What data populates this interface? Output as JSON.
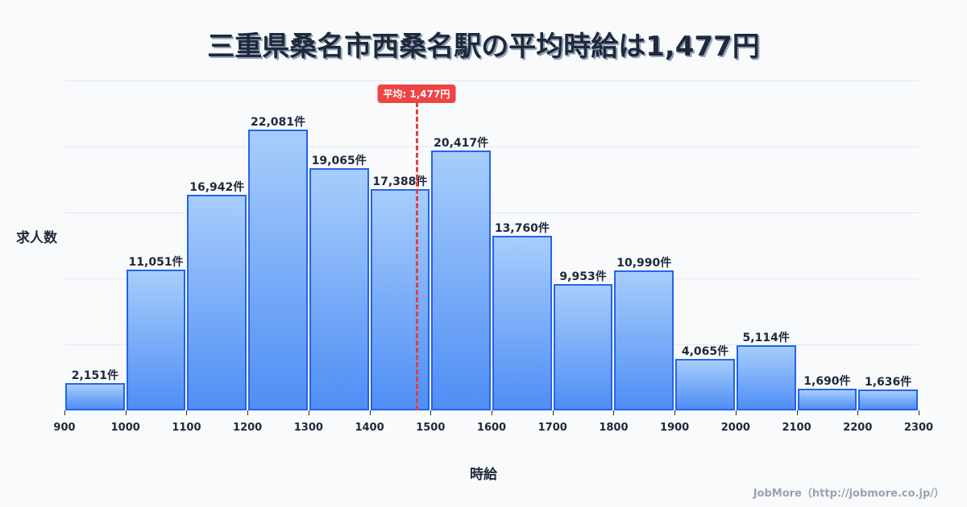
{
  "title": "三重県桑名市西桑名駅の平均時給は1,477円",
  "average": {
    "label": "平均: 1,477円",
    "value": 1477
  },
  "axes": {
    "ylabel": "求人数",
    "xlabel": "時給"
  },
  "credit": "JobMore（http://jobmore.co.jp/）",
  "colors": {
    "bar_border": "#2563eb",
    "bar_top": "#a7cdfb",
    "bar_bottom": "#4f8ef5",
    "avg": "#ef4444",
    "text": "#1e293b"
  },
  "chart_data": {
    "type": "bar",
    "title": "三重県桑名市西桑名駅の平均時給は1,477円",
    "xlabel": "時給",
    "ylabel": "求人数",
    "x_ticks": [
      900,
      1000,
      1100,
      1200,
      1300,
      1400,
      1500,
      1600,
      1700,
      1800,
      1900,
      2000,
      2100,
      2200,
      2300
    ],
    "categories": [
      "900-1000",
      "1000-1100",
      "1100-1200",
      "1200-1300",
      "1300-1400",
      "1400-1500",
      "1500-1600",
      "1600-1700",
      "1700-1800",
      "1800-1900",
      "1900-2000",
      "2000-2100",
      "2100-2200",
      "2200-2300"
    ],
    "values": [
      2151,
      11051,
      16942,
      22081,
      19065,
      17388,
      20417,
      13760,
      9953,
      10990,
      4065,
      5114,
      1690,
      1636
    ],
    "labels": [
      "2,151件",
      "11,051件",
      "16,942件",
      "22,081件",
      "19,065件",
      "17,388件",
      "20,417件",
      "13,760件",
      "9,953件",
      "10,990件",
      "4,065件",
      "5,114件",
      "1,690件",
      "1,636件"
    ],
    "xlim": [
      900,
      2300
    ],
    "ylim": [
      0,
      25940
    ],
    "grid": true,
    "annotations": [
      {
        "type": "vline",
        "x": 1477,
        "label": "平均: 1,477円"
      }
    ]
  }
}
